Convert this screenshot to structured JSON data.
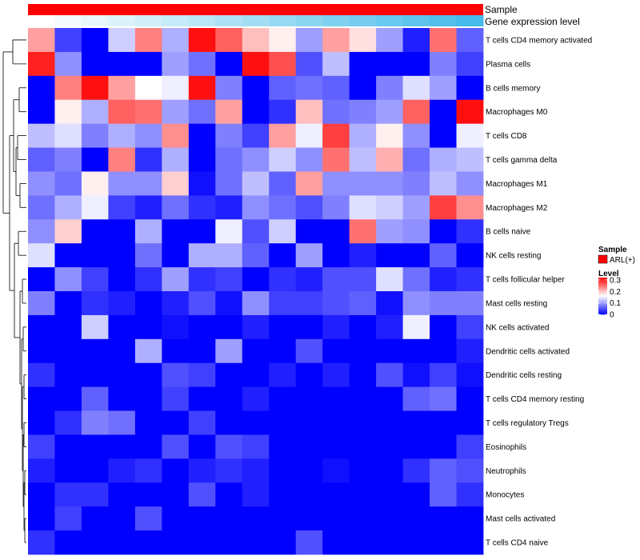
{
  "chart_data": {
    "type": "heatmap",
    "annotations": {
      "sample": {
        "label": "Sample",
        "value": "ARL(+)",
        "color": "#ff0000"
      },
      "gene_expression": {
        "label": "Gene expression level",
        "colors": [
          "#ffffff",
          "#f3fbfd",
          "#e8f7fc",
          "#dcf2fa",
          "#d1eef9",
          "#c5eaf8",
          "#bae6f6",
          "#aee1f5",
          "#a3ddf4",
          "#97d9f2",
          "#8cd5f1",
          "#80d0f0",
          "#75ccee",
          "#69c8ed",
          "#5ec4ec",
          "#52bfea",
          "#47bbe9"
        ]
      }
    },
    "rows": [
      "T cells CD4 memory activated",
      "Plasma cells",
      "B cells memory",
      "Macrophages M0",
      "T cells CD8",
      "T cells gamma delta",
      "Macrophages M1",
      "Macrophages M2",
      "B cells naive",
      "NK cells resting",
      "T cells follicular helper",
      "Mast cells resting",
      "NK cells activated",
      "Dendritic cells activated",
      "Dendritic cells resting",
      "T cells CD4 memory resting",
      "T cells regulatory  Tregs",
      "Eosinophils",
      "Neutrophils",
      "Monocytes",
      "Mast cells activated",
      "T cells CD4 naive"
    ],
    "values": [
      [
        0.22,
        0.04,
        0.0,
        0.13,
        0.24,
        0.11,
        0.31,
        0.26,
        0.2,
        0.17,
        0.1,
        0.22,
        0.18,
        0.1,
        0.02,
        0.25,
        0.06
      ],
      [
        0.3,
        0.09,
        0.0,
        0.0,
        0.0,
        0.1,
        0.07,
        0.0,
        0.31,
        0.27,
        0.05,
        0.12,
        0.0,
        0.0,
        0.0,
        0.08,
        0.04
      ],
      [
        0.0,
        0.24,
        0.31,
        0.22,
        0.16,
        0.15,
        0.31,
        0.08,
        0.0,
        0.06,
        0.07,
        0.06,
        0.0,
        0.08,
        0.14,
        0.1,
        0.0
      ],
      [
        0.0,
        0.17,
        0.11,
        0.26,
        0.25,
        0.1,
        0.07,
        0.22,
        0.0,
        0.03,
        0.2,
        0.07,
        0.08,
        0.1,
        0.26,
        0.0,
        0.31
      ],
      [
        0.12,
        0.14,
        0.08,
        0.11,
        0.09,
        0.23,
        0.0,
        0.08,
        0.04,
        0.22,
        0.15,
        0.28,
        0.11,
        0.17,
        0.09,
        0.0,
        0.15
      ],
      [
        0.06,
        0.08,
        0.0,
        0.24,
        0.03,
        0.11,
        0.0,
        0.07,
        0.09,
        0.13,
        0.09,
        0.25,
        0.12,
        0.21,
        0.07,
        0.11,
        0.12
      ],
      [
        0.09,
        0.07,
        0.17,
        0.09,
        0.09,
        0.19,
        0.01,
        0.07,
        0.12,
        0.06,
        0.22,
        0.09,
        0.09,
        0.09,
        0.08,
        0.12,
        0.09
      ],
      [
        0.07,
        0.11,
        0.15,
        0.04,
        0.02,
        0.07,
        0.03,
        0.02,
        0.09,
        0.07,
        0.05,
        0.08,
        0.14,
        0.13,
        0.1,
        0.28,
        0.23
      ],
      [
        0.09,
        0.19,
        0.0,
        0.0,
        0.11,
        0.0,
        0.0,
        0.15,
        0.05,
        0.13,
        0.0,
        0.0,
        0.25,
        0.1,
        0.09,
        0.0,
        0.03
      ],
      [
        0.14,
        0.0,
        0.0,
        0.0,
        0.07,
        0.0,
        0.11,
        0.11,
        0.06,
        0.0,
        0.1,
        0.0,
        0.02,
        0.0,
        0.0,
        0.06,
        0.0
      ],
      [
        0.0,
        0.09,
        0.04,
        0.0,
        0.03,
        0.1,
        0.03,
        0.04,
        0.0,
        0.03,
        0.02,
        0.05,
        0.05,
        0.14,
        0.07,
        0.02,
        0.03
      ],
      [
        0.08,
        0.0,
        0.03,
        0.02,
        0.0,
        0.02,
        0.05,
        0.01,
        0.09,
        0.04,
        0.04,
        0.05,
        0.06,
        0.01,
        0.09,
        0.08,
        0.08
      ],
      [
        0.0,
        0.0,
        0.13,
        0.0,
        0.0,
        0.01,
        0.0,
        0.0,
        0.02,
        0.0,
        0.0,
        0.02,
        0.0,
        0.02,
        0.15,
        0.0,
        0.04
      ],
      [
        0.0,
        0.0,
        0.0,
        0.0,
        0.11,
        0.0,
        0.0,
        0.1,
        0.0,
        0.0,
        0.05,
        0.0,
        0.0,
        0.0,
        0.0,
        0.0,
        0.02
      ],
      [
        0.03,
        0.0,
        0.0,
        0.0,
        0.0,
        0.05,
        0.04,
        0.0,
        0.0,
        0.02,
        0.0,
        0.02,
        0.0,
        0.05,
        0.01,
        0.04,
        0.01
      ],
      [
        0.0,
        0.0,
        0.06,
        0.0,
        0.0,
        0.04,
        0.0,
        0.0,
        0.02,
        0.0,
        0.0,
        0.0,
        0.0,
        0.0,
        0.06,
        0.07,
        0.0
      ],
      [
        0.0,
        0.03,
        0.08,
        0.07,
        0.0,
        0.0,
        0.04,
        0.0,
        0.0,
        0.0,
        0.0,
        0.0,
        0.0,
        0.0,
        0.0,
        0.0,
        0.0
      ],
      [
        0.04,
        0.0,
        0.0,
        0.0,
        0.0,
        0.05,
        0.0,
        0.05,
        0.04,
        0.0,
        0.0,
        0.0,
        0.0,
        0.0,
        0.0,
        0.0,
        0.04
      ],
      [
        0.02,
        0.0,
        0.0,
        0.02,
        0.03,
        0.0,
        0.02,
        0.03,
        0.02,
        0.0,
        0.0,
        0.01,
        0.0,
        0.0,
        0.03,
        0.06,
        0.05
      ],
      [
        0.0,
        0.03,
        0.03,
        0.0,
        0.0,
        0.0,
        0.05,
        0.0,
        0.02,
        0.0,
        0.0,
        0.0,
        0.0,
        0.0,
        0.0,
        0.06,
        0.03
      ],
      [
        0.0,
        0.04,
        0.0,
        0.0,
        0.05,
        0.0,
        0.0,
        0.0,
        0.0,
        0.0,
        0.0,
        0.0,
        0.0,
        0.0,
        0.0,
        0.0,
        0.0
      ],
      [
        0.03,
        0.0,
        0.0,
        0.0,
        0.0,
        0.0,
        0.0,
        0.0,
        0.0,
        0.0,
        0.05,
        0.0,
        0.0,
        0.0,
        0.0,
        0.0,
        0.0
      ]
    ],
    "color_scale": {
      "min": 0,
      "max": 0.32,
      "low": "#0000ff",
      "mid": "#ffffff",
      "high": "#ff0000"
    },
    "legend": {
      "sample_title": "Sample",
      "sample_entry": "ARL(+)",
      "level_title": "Level",
      "ticks": [
        0.3,
        0.2,
        0.1,
        0
      ],
      "tick_labels": [
        "0.3",
        "0.2",
        "0.1",
        "0"
      ]
    },
    "row_dendrogram": true,
    "legend_position": "right"
  }
}
